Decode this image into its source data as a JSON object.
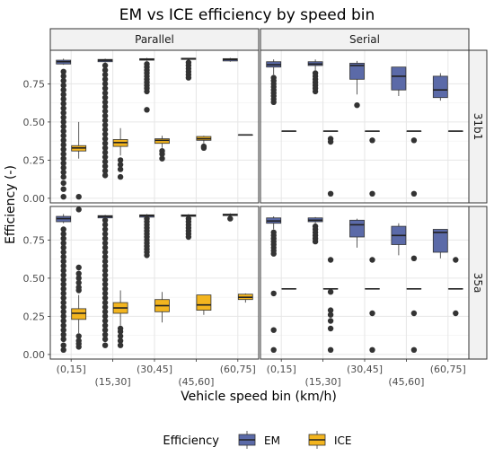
{
  "chart_data": {
    "type": "boxplot",
    "title": "EM vs ICE efficiency by speed bin",
    "xlabel": "Vehicle speed bin (km/h)",
    "ylabel": "Efficiency (-)",
    "ylim": [
      -0.03,
      0.97
    ],
    "yticks": [
      0.0,
      0.25,
      0.5,
      0.75
    ],
    "ytick_labels": [
      "0.00",
      "0.25",
      "0.50",
      "0.75"
    ],
    "categories": [
      "(0,15]",
      "(15,30]",
      "(30,45]",
      "(45,60]",
      "(60,75]"
    ],
    "col_facets": [
      "Parallel",
      "Serial"
    ],
    "row_facets": [
      "31b1",
      "35a"
    ],
    "legend": {
      "title": "Efficiency",
      "position": "bottom",
      "entries": [
        {
          "name": "EM",
          "color": "#5b6aa8"
        },
        {
          "name": "ICE",
          "color": "#f3b51f"
        }
      ]
    },
    "grid": true,
    "panels": [
      {
        "col": "Parallel",
        "row": "31b1",
        "boxes": [
          {
            "category": "(0,15]",
            "series": "EM",
            "q1": 0.88,
            "median": 0.895,
            "q3": 0.905,
            "whisker_low": 0.875,
            "whisker_high": 0.915,
            "outliers": [
              0.83,
              0.8,
              0.77,
              0.74,
              0.71,
              0.68,
              0.65,
              0.62,
              0.59,
              0.56,
              0.53,
              0.5,
              0.47,
              0.44,
              0.41,
              0.38,
              0.35,
              0.32,
              0.29,
              0.26,
              0.23,
              0.2,
              0.17,
              0.14,
              0.1,
              0.06,
              0.01
            ]
          },
          {
            "category": "(0,15]",
            "series": "ICE",
            "q1": 0.31,
            "median": 0.33,
            "q3": 0.345,
            "whisker_low": 0.26,
            "whisker_high": 0.5,
            "outliers": [
              0.01
            ]
          },
          {
            "category": "(15,30]",
            "series": "EM",
            "q1": 0.895,
            "median": 0.905,
            "q3": 0.91,
            "whisker_low": 0.89,
            "whisker_high": 0.915,
            "outliers": [
              0.87,
              0.84,
              0.81,
              0.78,
              0.75,
              0.72,
              0.69,
              0.66,
              0.63,
              0.6,
              0.57,
              0.54,
              0.51,
              0.48,
              0.45,
              0.42,
              0.39,
              0.36,
              0.33,
              0.3,
              0.27,
              0.24,
              0.21,
              0.18,
              0.15
            ]
          },
          {
            "category": "(15,30]",
            "series": "ICE",
            "q1": 0.34,
            "median": 0.365,
            "q3": 0.385,
            "whisker_low": 0.28,
            "whisker_high": 0.46,
            "outliers": [
              0.25,
              0.22,
              0.19,
              0.14
            ]
          },
          {
            "category": "(30,45]",
            "series": "EM",
            "q1": 0.905,
            "median": 0.91,
            "q3": 0.915,
            "whisker_low": 0.9,
            "whisker_high": 0.92,
            "outliers": [
              0.88,
              0.86,
              0.84,
              0.82,
              0.8,
              0.78,
              0.76,
              0.74,
              0.72,
              0.7,
              0.58
            ]
          },
          {
            "category": "(30,45]",
            "series": "ICE",
            "q1": 0.36,
            "median": 0.38,
            "q3": 0.39,
            "whisker_low": 0.33,
            "whisker_high": 0.41,
            "outliers": [
              0.31,
              0.29,
              0.26
            ]
          },
          {
            "category": "(45,60]",
            "series": "EM",
            "q1": 0.91,
            "median": 0.915,
            "q3": 0.918,
            "whisker_low": 0.905,
            "whisker_high": 0.92,
            "outliers": [
              0.89,
              0.87,
              0.85,
              0.83,
              0.81,
              0.79
            ]
          },
          {
            "category": "(45,60]",
            "series": "ICE",
            "q1": 0.38,
            "median": 0.39,
            "q3": 0.405,
            "whisker_low": 0.36,
            "whisker_high": 0.41,
            "outliers": [
              0.34,
              0.33
            ]
          },
          {
            "category": "(60,75]",
            "series": "EM",
            "q1": 0.9,
            "median": 0.91,
            "q3": 0.915,
            "whisker_low": 0.895,
            "whisker_high": 0.92,
            "outliers": []
          },
          {
            "category": "(60,75]",
            "series": "ICE",
            "q1": 0.415,
            "median": 0.415,
            "q3": 0.415,
            "whisker_low": 0.415,
            "whisker_high": 0.415,
            "outliers": []
          }
        ]
      },
      {
        "col": "Serial",
        "row": "31b1",
        "boxes": [
          {
            "category": "(0,15]",
            "series": "EM",
            "q1": 0.86,
            "median": 0.875,
            "q3": 0.895,
            "whisker_low": 0.81,
            "whisker_high": 0.91,
            "outliers": [
              0.79,
              0.77,
              0.75,
              0.73,
              0.71,
              0.69,
              0.67,
              0.65,
              0.63
            ]
          },
          {
            "category": "(0,15]",
            "series": "ICE",
            "q1": 0.44,
            "median": 0.44,
            "q3": 0.44,
            "whisker_low": 0.44,
            "whisker_high": 0.44,
            "outliers": []
          },
          {
            "category": "(15,30]",
            "series": "EM",
            "q1": 0.87,
            "median": 0.88,
            "q3": 0.895,
            "whisker_low": 0.84,
            "whisker_high": 0.91,
            "outliers": [
              0.82,
              0.8,
              0.78,
              0.76,
              0.74,
              0.72,
              0.7
            ]
          },
          {
            "category": "(15,30]",
            "series": "ICE",
            "q1": 0.44,
            "median": 0.44,
            "q3": 0.44,
            "whisker_low": 0.44,
            "whisker_high": 0.44,
            "outliers": [
              0.39,
              0.37,
              0.03
            ]
          },
          {
            "category": "(30,45]",
            "series": "EM",
            "q1": 0.78,
            "median": 0.87,
            "q3": 0.885,
            "whisker_low": 0.68,
            "whisker_high": 0.9,
            "outliers": [
              0.61
            ]
          },
          {
            "category": "(30,45]",
            "series": "ICE",
            "q1": 0.44,
            "median": 0.44,
            "q3": 0.44,
            "whisker_low": 0.44,
            "whisker_high": 0.44,
            "outliers": [
              0.38,
              0.03
            ]
          },
          {
            "category": "(45,60]",
            "series": "EM",
            "q1": 0.71,
            "median": 0.8,
            "q3": 0.86,
            "whisker_low": 0.67,
            "whisker_high": 0.86,
            "outliers": []
          },
          {
            "category": "(45,60]",
            "series": "ICE",
            "q1": 0.44,
            "median": 0.44,
            "q3": 0.44,
            "whisker_low": 0.44,
            "whisker_high": 0.44,
            "outliers": [
              0.38,
              0.03
            ]
          },
          {
            "category": "(60,75]",
            "series": "EM",
            "q1": 0.66,
            "median": 0.71,
            "q3": 0.8,
            "whisker_low": 0.64,
            "whisker_high": 0.82,
            "outliers": []
          },
          {
            "category": "(60,75]",
            "series": "ICE",
            "q1": 0.44,
            "median": 0.44,
            "q3": 0.44,
            "whisker_low": 0.44,
            "whisker_high": 0.44,
            "outliers": []
          }
        ]
      },
      {
        "col": "Parallel",
        "row": "35a",
        "boxes": [
          {
            "category": "(0,15]",
            "series": "EM",
            "q1": 0.87,
            "median": 0.89,
            "q3": 0.905,
            "whisker_low": 0.86,
            "whisker_high": 0.92,
            "outliers": [
              0.82,
              0.79,
              0.76,
              0.73,
              0.7,
              0.67,
              0.64,
              0.61,
              0.58,
              0.55,
              0.52,
              0.49,
              0.46,
              0.43,
              0.4,
              0.37,
              0.34,
              0.31,
              0.28,
              0.25,
              0.22,
              0.19,
              0.16,
              0.13,
              0.1,
              0.06,
              0.03
            ]
          },
          {
            "category": "(0,15]",
            "series": "ICE",
            "q1": 0.23,
            "median": 0.27,
            "q3": 0.3,
            "whisker_low": 0.14,
            "whisker_high": 0.39,
            "outliers": [
              0.95,
              0.57,
              0.53,
              0.5,
              0.47,
              0.44,
              0.42,
              0.12,
              0.09,
              0.07,
              0.05
            ]
          },
          {
            "category": "(15,30]",
            "series": "EM",
            "q1": 0.895,
            "median": 0.905,
            "q3": 0.91,
            "whisker_low": 0.89,
            "whisker_high": 0.915,
            "outliers": [
              0.88,
              0.85,
              0.82,
              0.79,
              0.76,
              0.73,
              0.7,
              0.67,
              0.64,
              0.61,
              0.58,
              0.55,
              0.52,
              0.49,
              0.46,
              0.43,
              0.4,
              0.37,
              0.34,
              0.31,
              0.28,
              0.25,
              0.22,
              0.19,
              0.16,
              0.13,
              0.1,
              0.06
            ]
          },
          {
            "category": "(15,30]",
            "series": "ICE",
            "q1": 0.27,
            "median": 0.305,
            "q3": 0.34,
            "whisker_low": 0.19,
            "whisker_high": 0.42,
            "outliers": [
              0.17,
              0.15,
              0.12,
              0.09,
              0.06
            ]
          },
          {
            "category": "(30,45]",
            "series": "EM",
            "q1": 0.9,
            "median": 0.91,
            "q3": 0.915,
            "whisker_low": 0.895,
            "whisker_high": 0.92,
            "outliers": [
              0.89,
              0.87,
              0.85,
              0.83,
              0.81,
              0.79,
              0.77,
              0.75,
              0.73,
              0.71,
              0.69,
              0.67,
              0.65
            ]
          },
          {
            "category": "(30,45]",
            "series": "ICE",
            "q1": 0.28,
            "median": 0.32,
            "q3": 0.36,
            "whisker_low": 0.21,
            "whisker_high": 0.41,
            "outliers": []
          },
          {
            "category": "(45,60]",
            "series": "EM",
            "q1": 0.905,
            "median": 0.91,
            "q3": 0.915,
            "whisker_low": 0.9,
            "whisker_high": 0.92,
            "outliers": [
              0.89,
              0.87,
              0.85,
              0.83,
              0.81,
              0.79,
              0.77
            ]
          },
          {
            "category": "(45,60]",
            "series": "ICE",
            "q1": 0.29,
            "median": 0.325,
            "q3": 0.39,
            "whisker_low": 0.26,
            "whisker_high": 0.39,
            "outliers": []
          },
          {
            "category": "(60,75]",
            "series": "EM",
            "q1": 0.91,
            "median": 0.915,
            "q3": 0.92,
            "whisker_low": 0.905,
            "whisker_high": 0.925,
            "outliers": [
              0.89
            ]
          },
          {
            "category": "(60,75]",
            "series": "ICE",
            "q1": 0.36,
            "median": 0.375,
            "q3": 0.395,
            "whisker_low": 0.34,
            "whisker_high": 0.4,
            "outliers": []
          }
        ]
      },
      {
        "col": "Serial",
        "row": "35a",
        "boxes": [
          {
            "category": "(0,15]",
            "series": "EM",
            "q1": 0.86,
            "median": 0.875,
            "q3": 0.895,
            "whisker_low": 0.82,
            "whisker_high": 0.905,
            "outliers": [
              0.8,
              0.78,
              0.76,
              0.74,
              0.72,
              0.7,
              0.68,
              0.66,
              0.4,
              0.16,
              0.03
            ]
          },
          {
            "category": "(0,15]",
            "series": "ICE",
            "q1": 0.43,
            "median": 0.43,
            "q3": 0.43,
            "whisker_low": 0.43,
            "whisker_high": 0.43,
            "outliers": []
          },
          {
            "category": "(15,30]",
            "series": "EM",
            "q1": 0.87,
            "median": 0.88,
            "q3": 0.895,
            "whisker_low": 0.86,
            "whisker_high": 0.9,
            "outliers": [
              0.84,
              0.82,
              0.8,
              0.78,
              0.76,
              0.74
            ]
          },
          {
            "category": "(15,30]",
            "series": "ICE",
            "q1": 0.43,
            "median": 0.43,
            "q3": 0.43,
            "whisker_low": 0.43,
            "whisker_high": 0.43,
            "outliers": [
              0.62,
              0.41,
              0.29,
              0.26,
              0.22,
              0.17,
              0.03
            ]
          },
          {
            "category": "(30,45]",
            "series": "EM",
            "q1": 0.77,
            "median": 0.85,
            "q3": 0.88,
            "whisker_low": 0.7,
            "whisker_high": 0.89,
            "outliers": []
          },
          {
            "category": "(30,45]",
            "series": "ICE",
            "q1": 0.43,
            "median": 0.43,
            "q3": 0.43,
            "whisker_low": 0.43,
            "whisker_high": 0.43,
            "outliers": [
              0.62,
              0.27,
              0.03
            ]
          },
          {
            "category": "(45,60]",
            "series": "EM",
            "q1": 0.72,
            "median": 0.78,
            "q3": 0.84,
            "whisker_low": 0.65,
            "whisker_high": 0.86,
            "outliers": []
          },
          {
            "category": "(45,60]",
            "series": "ICE",
            "q1": 0.43,
            "median": 0.43,
            "q3": 0.43,
            "whisker_low": 0.43,
            "whisker_high": 0.43,
            "outliers": [
              0.63,
              0.27,
              0.03
            ]
          },
          {
            "category": "(60,75]",
            "series": "EM",
            "q1": 0.67,
            "median": 0.8,
            "q3": 0.82,
            "whisker_low": 0.63,
            "whisker_high": 0.82,
            "outliers": []
          },
          {
            "category": "(60,75]",
            "series": "ICE",
            "q1": 0.43,
            "median": 0.43,
            "q3": 0.43,
            "whisker_low": 0.43,
            "whisker_high": 0.43,
            "outliers": [
              0.62,
              0.27
            ]
          }
        ]
      }
    ]
  }
}
